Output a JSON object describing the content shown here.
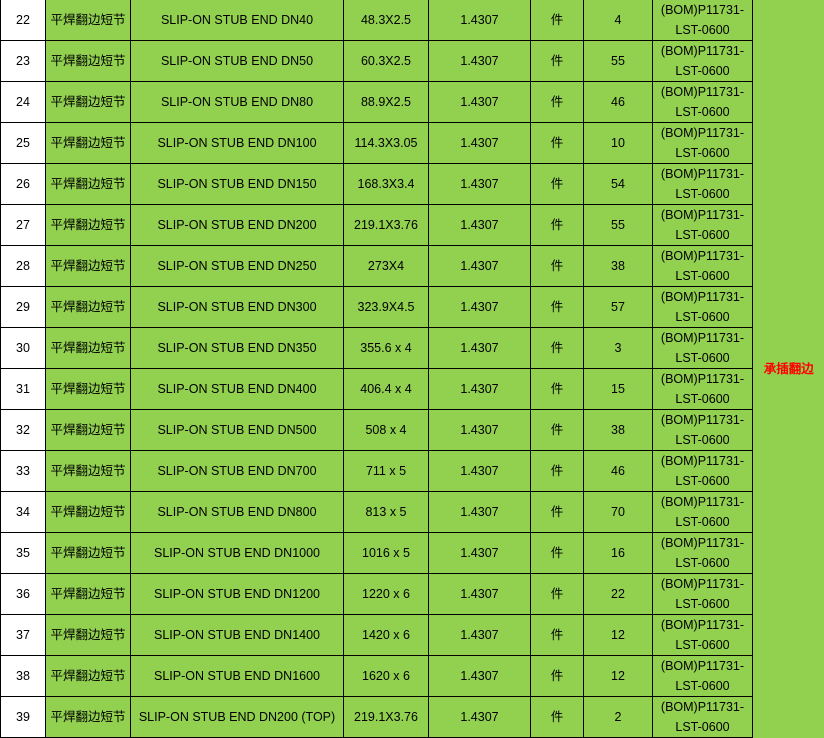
{
  "colors": {
    "row_bg": "#92d050",
    "index_bg": "#ffffff",
    "remark_text": "#ff0000"
  },
  "remark": "承插翻边",
  "rows": [
    {
      "no": "22",
      "name": "平焊翻边短节",
      "desc": "SLIP-ON STUB END DN40",
      "size": "48.3X2.5",
      "material": "1.4307",
      "unit": "件",
      "qty": "4",
      "bom": "(BOM)P11731-LST-0600"
    },
    {
      "no": "23",
      "name": "平焊翻边短节",
      "desc": "SLIP-ON STUB END DN50",
      "size": "60.3X2.5",
      "material": "1.4307",
      "unit": "件",
      "qty": "55",
      "bom": "(BOM)P11731-LST-0600"
    },
    {
      "no": "24",
      "name": "平焊翻边短节",
      "desc": "SLIP-ON STUB END DN80",
      "size": "88.9X2.5",
      "material": "1.4307",
      "unit": "件",
      "qty": "46",
      "bom": "(BOM)P11731-LST-0600"
    },
    {
      "no": "25",
      "name": "平焊翻边短节",
      "desc": "SLIP-ON STUB END DN100",
      "size": "114.3X3.05",
      "material": "1.4307",
      "unit": "件",
      "qty": "10",
      "bom": "(BOM)P11731-LST-0600"
    },
    {
      "no": "26",
      "name": "平焊翻边短节",
      "desc": "SLIP-ON STUB END DN150",
      "size": "168.3X3.4",
      "material": "1.4307",
      "unit": "件",
      "qty": "54",
      "bom": "(BOM)P11731-LST-0600"
    },
    {
      "no": "27",
      "name": "平焊翻边短节",
      "desc": "SLIP-ON STUB END DN200",
      "size": "219.1X3.76",
      "material": "1.4307",
      "unit": "件",
      "qty": "55",
      "bom": "(BOM)P11731-LST-0600"
    },
    {
      "no": "28",
      "name": "平焊翻边短节",
      "desc": "SLIP-ON STUB END DN250",
      "size": "273X4",
      "material": "1.4307",
      "unit": "件",
      "qty": "38",
      "bom": "(BOM)P11731-LST-0600"
    },
    {
      "no": "29",
      "name": "平焊翻边短节",
      "desc": "SLIP-ON STUB END DN300",
      "size": "323.9X4.5",
      "material": "1.4307",
      "unit": "件",
      "qty": "57",
      "bom": "(BOM)P11731-LST-0600"
    },
    {
      "no": "30",
      "name": "平焊翻边短节",
      "desc": "SLIP-ON STUB END DN350",
      "size": "355.6 x 4",
      "material": "1.4307",
      "unit": "件",
      "qty": "3",
      "bom": "(BOM)P11731-LST-0600"
    },
    {
      "no": "31",
      "name": "平焊翻边短节",
      "desc": "SLIP-ON STUB END DN400",
      "size": "406.4 x 4",
      "material": "1.4307",
      "unit": "件",
      "qty": "15",
      "bom": "(BOM)P11731-LST-0600"
    },
    {
      "no": "32",
      "name": "平焊翻边短节",
      "desc": "SLIP-ON STUB END DN500",
      "size": "508 x 4",
      "material": "1.4307",
      "unit": "件",
      "qty": "38",
      "bom": "(BOM)P11731-LST-0600"
    },
    {
      "no": "33",
      "name": "平焊翻边短节",
      "desc": "SLIP-ON STUB END DN700",
      "size": "711 x 5",
      "material": "1.4307",
      "unit": "件",
      "qty": "46",
      "bom": "(BOM)P11731-LST-0600"
    },
    {
      "no": "34",
      "name": "平焊翻边短节",
      "desc": "SLIP-ON STUB END DN800",
      "size": "813 x 5",
      "material": "1.4307",
      "unit": "件",
      "qty": "70",
      "bom": "(BOM)P11731-LST-0600"
    },
    {
      "no": "35",
      "name": "平焊翻边短节",
      "desc": "SLIP-ON STUB END DN1000",
      "size": "1016 x 5",
      "material": "1.4307",
      "unit": "件",
      "qty": "16",
      "bom": "(BOM)P11731-LST-0600"
    },
    {
      "no": "36",
      "name": "平焊翻边短节",
      "desc": "SLIP-ON STUB END DN1200",
      "size": "1220 x 6",
      "material": "1.4307",
      "unit": "件",
      "qty": "22",
      "bom": "(BOM)P11731-LST-0600"
    },
    {
      "no": "37",
      "name": "平焊翻边短节",
      "desc": "SLIP-ON STUB END DN1400",
      "size": "1420 x 6",
      "material": "1.4307",
      "unit": "件",
      "qty": "12",
      "bom": "(BOM)P11731-LST-0600"
    },
    {
      "no": "38",
      "name": "平焊翻边短节",
      "desc": "SLIP-ON STUB END DN1600",
      "size": "1620 x 6",
      "material": "1.4307",
      "unit": "件",
      "qty": "12",
      "bom": "(BOM)P11731-LST-0600"
    },
    {
      "no": "39",
      "name": "平焊翻边短节",
      "desc": "SLIP-ON STUB END DN200 (TOP)",
      "size": "219.1X3.76",
      "material": "1.4307",
      "unit": "件",
      "qty": "2",
      "bom": "(BOM)P11731-LST-0600"
    }
  ]
}
